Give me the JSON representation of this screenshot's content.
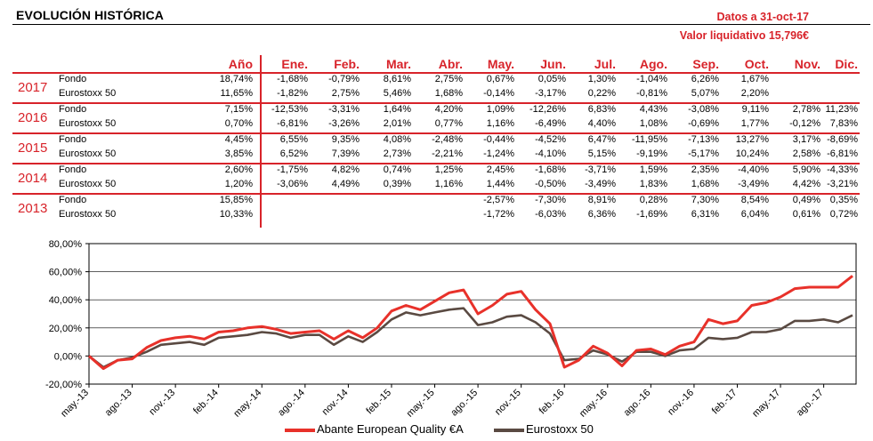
{
  "title": "EVOLUCIÓN HISTÓRICA",
  "date": "Datos a 31-oct-17",
  "nav": "Valor liquidativo 15,796€",
  "headers": [
    "Año",
    "Ene.",
    "Feb.",
    "Mar.",
    "Abr.",
    "May.",
    "Jun.",
    "Jul.",
    "Ago.",
    "Sep.",
    "Oct.",
    "Nov.",
    "Dic."
  ],
  "rows": [
    {
      "year": "2017",
      "fondo": {
        "label": "Fondo",
        "ytd": "18,74%",
        "months": [
          "-1,68%",
          "-0,79%",
          "8,61%",
          "2,75%",
          "0,67%",
          "0,05%",
          "1,30%",
          "-1,04%",
          "6,26%",
          "1,67%",
          "",
          ""
        ]
      },
      "index": {
        "label": "Eurostoxx 50",
        "ytd": "11,65%",
        "months": [
          "-1,82%",
          "2,75%",
          "5,46%",
          "1,68%",
          "-0,14%",
          "-3,17%",
          "0,22%",
          "-0,81%",
          "5,07%",
          "2,20%",
          "",
          ""
        ]
      }
    },
    {
      "year": "2016",
      "fondo": {
        "label": "Fondo",
        "ytd": "7,15%",
        "months": [
          "-12,53%",
          "-3,31%",
          "1,64%",
          "4,20%",
          "1,09%",
          "-12,26%",
          "6,83%",
          "4,43%",
          "-3,08%",
          "9,11%",
          "2,78%",
          "11,23%"
        ]
      },
      "index": {
        "label": "Eurostoxx 50",
        "ytd": "0,70%",
        "months": [
          "-6,81%",
          "-3,26%",
          "2,01%",
          "0,77%",
          "1,16%",
          "-6,49%",
          "4,40%",
          "1,08%",
          "-0,69%",
          "1,77%",
          "-0,12%",
          "7,83%"
        ]
      }
    },
    {
      "year": "2015",
      "fondo": {
        "label": "Fondo",
        "ytd": "4,45%",
        "months": [
          "6,55%",
          "9,35%",
          "4,08%",
          "-2,48%",
          "-0,44%",
          "-4,52%",
          "6,47%",
          "-11,95%",
          "-7,13%",
          "13,27%",
          "3,17%",
          "-8,69%"
        ]
      },
      "index": {
        "label": "Eurostoxx 50",
        "ytd": "3,85%",
        "months": [
          "6,52%",
          "7,39%",
          "2,73%",
          "-2,21%",
          "-1,24%",
          "-4,10%",
          "5,15%",
          "-9,19%",
          "-5,17%",
          "10,24%",
          "2,58%",
          "-6,81%"
        ]
      }
    },
    {
      "year": "2014",
      "fondo": {
        "label": "Fondo",
        "ytd": "2,60%",
        "months": [
          "-1,75%",
          "4,82%",
          "0,74%",
          "1,25%",
          "2,45%",
          "-1,68%",
          "-3,71%",
          "1,59%",
          "2,35%",
          "-4,40%",
          "5,90%",
          "-4,33%"
        ]
      },
      "index": {
        "label": "Eurostoxx 50",
        "ytd": "1,20%",
        "months": [
          "-3,06%",
          "4,49%",
          "0,39%",
          "1,16%",
          "1,44%",
          "-0,50%",
          "-3,49%",
          "1,83%",
          "1,68%",
          "-3,49%",
          "4,42%",
          "-3,21%"
        ]
      }
    },
    {
      "year": "2013",
      "fondo": {
        "label": "Fondo",
        "ytd": "15,85%",
        "months": [
          "",
          "",
          "",
          "",
          "-2,57%",
          "-7,30%",
          "8,91%",
          "0,28%",
          "7,30%",
          "8,54%",
          "0,49%",
          "0,35%"
        ]
      },
      "index": {
        "label": "Eurostoxx 50",
        "ytd": "10,33%",
        "months": [
          "",
          "",
          "",
          "",
          "-1,72%",
          "-6,03%",
          "6,36%",
          "-1,69%",
          "6,31%",
          "6,04%",
          "0,61%",
          "0,72%"
        ]
      }
    }
  ],
  "colors": {
    "accent": "#d8232a",
    "fund_line": "#e8312a",
    "index_line": "#5a4a42"
  },
  "chart_data": {
    "type": "line",
    "y_ticks": [
      "80,00%",
      "60,00%",
      "40,00%",
      "20,00%",
      "0,00%",
      "-20,00%"
    ],
    "ylim": [
      -20,
      80
    ],
    "x_ticks": [
      "may.-13",
      "ago.-13",
      "nov.-13",
      "feb.-14",
      "may.-14",
      "ago.-14",
      "nov.-14",
      "feb.-15",
      "may.-15",
      "ago.-15",
      "nov.-15",
      "feb.-16",
      "may.-16",
      "ago.-16",
      "nov.-16",
      "feb.-17",
      "may.-17",
      "ago.-17"
    ],
    "x": [
      "may.-13",
      "jun.-13",
      "jul.-13",
      "ago.-13",
      "sep.-13",
      "oct.-13",
      "nov.-13",
      "dic.-13",
      "ene.-14",
      "feb.-14",
      "mar.-14",
      "abr.-14",
      "may.-14",
      "jun.-14",
      "jul.-14",
      "ago.-14",
      "sep.-14",
      "oct.-14",
      "nov.-14",
      "dic.-14",
      "ene.-15",
      "feb.-15",
      "mar.-15",
      "abr.-15",
      "may.-15",
      "jun.-15",
      "jul.-15",
      "ago.-15",
      "sep.-15",
      "oct.-15",
      "nov.-15",
      "dic.-15",
      "ene.-16",
      "feb.-16",
      "mar.-16",
      "abr.-16",
      "may.-16",
      "jun.-16",
      "jul.-16",
      "ago.-16",
      "sep.-16",
      "oct.-16",
      "nov.-16",
      "dic.-16",
      "ene.-17",
      "feb.-17",
      "mar.-17",
      "abr.-17",
      "may.-17",
      "jun.-17",
      "jul.-17",
      "ago.-17",
      "sep.-17",
      "oct.-17"
    ],
    "series": [
      {
        "name": "Abante European Quality €A",
        "values": [
          0,
          -9,
          -3,
          -2,
          6,
          11,
          13,
          14,
          12,
          17,
          18,
          20,
          21,
          19,
          16,
          17,
          18,
          12,
          18,
          13,
          20,
          32,
          36,
          33,
          39,
          45,
          47,
          30,
          36,
          44,
          46,
          33,
          23,
          -8,
          -3,
          7,
          2,
          -7,
          4,
          5,
          1,
          7,
          10,
          26,
          23,
          25,
          36,
          38,
          42,
          48,
          49,
          49,
          49,
          57
        ]
      },
      {
        "name": "Eurostoxx 50",
        "values": [
          0,
          -8,
          -3,
          -1,
          3,
          8,
          9,
          10,
          8,
          13,
          14,
          15,
          17,
          16,
          13,
          15,
          15,
          8,
          14,
          10,
          17,
          26,
          31,
          29,
          31,
          33,
          34,
          22,
          24,
          28,
          29,
          24,
          16,
          -3,
          -2,
          4,
          1,
          -4,
          3,
          3,
          0,
          4,
          5,
          13,
          12,
          13,
          17,
          17,
          19,
          25,
          25,
          26,
          24,
          29
        ]
      }
    ]
  }
}
